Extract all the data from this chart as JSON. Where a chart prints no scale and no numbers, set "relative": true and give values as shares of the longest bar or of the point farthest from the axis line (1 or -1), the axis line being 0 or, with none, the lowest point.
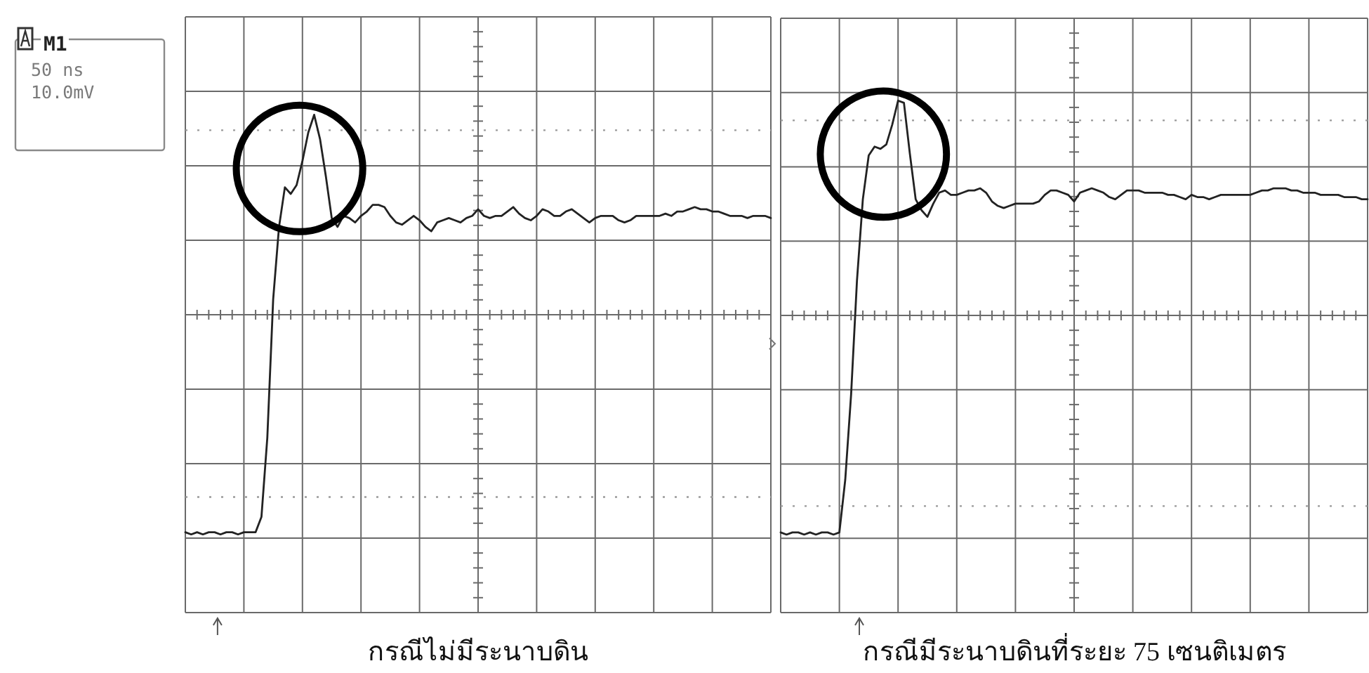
{
  "chart_data": [
    {
      "type": "line",
      "relative": true,
      "grid": true,
      "xlabel": "กรณีไม่มีระนาบดิน",
      "annotations": [
        "M1",
        "50 ns",
        "10.0mV"
      ],
      "ref_lines": [
        {
          "axis": "y",
          "value": 0.84,
          "line_style": "dotted",
          "color": "#9a9a9a"
        },
        {
          "axis": "y",
          "value": -0.83,
          "line_style": "dotted",
          "color": "#9a9a9a"
        }
      ],
      "categories": [
        null,
        null,
        null,
        null,
        null,
        null,
        null,
        null,
        null,
        null,
        null,
        null,
        null,
        null,
        null,
        null,
        null,
        null,
        null,
        null,
        null,
        null,
        null,
        null,
        null,
        null,
        null,
        null,
        null,
        null,
        null,
        null,
        null,
        null,
        null,
        null,
        null,
        null,
        null,
        null,
        null,
        null,
        null,
        null,
        null,
        null,
        null,
        null,
        null,
        null,
        null,
        null,
        null,
        null,
        null,
        null,
        null,
        null,
        null,
        null,
        null,
        null,
        null,
        null,
        null,
        null,
        null,
        null,
        null,
        null,
        null,
        null,
        null,
        null,
        null,
        null,
        null,
        null,
        null,
        null,
        null,
        null,
        null,
        null,
        null,
        null,
        null,
        null,
        null,
        null,
        null,
        null,
        null,
        null,
        null,
        null,
        null,
        null,
        null,
        null,
        null
      ],
      "series": [
        {
          "color": "#222222",
          "values": [
            -0.99,
            -1.0,
            -0.99,
            -1.0,
            -0.99,
            -0.99,
            -1.0,
            -0.99,
            -0.99,
            -1.0,
            -0.99,
            -0.99,
            -0.99,
            -0.92,
            -0.56,
            0.07,
            0.4,
            0.58,
            0.55,
            0.59,
            0.7,
            0.83,
            0.91,
            0.8,
            0.63,
            0.44,
            0.4,
            0.45,
            0.44,
            0.42,
            0.45,
            0.47,
            0.5,
            0.5,
            0.49,
            0.45,
            0.42,
            0.41,
            0.43,
            0.45,
            0.43,
            0.4,
            0.38,
            0.42,
            0.43,
            0.44,
            0.43,
            0.42,
            0.44,
            0.45,
            0.48,
            0.45,
            0.44,
            0.45,
            0.45,
            0.47,
            0.49,
            0.46,
            0.44,
            0.43,
            0.45,
            0.48,
            0.47,
            0.45,
            0.45,
            0.47,
            0.48,
            0.46,
            0.44,
            0.42,
            0.44,
            0.45,
            0.45,
            0.45,
            0.43,
            0.42,
            0.43,
            0.45,
            0.45,
            0.45,
            0.45,
            0.45,
            0.46,
            0.45,
            0.47,
            0.47,
            0.48,
            0.49,
            0.48,
            0.48,
            0.47,
            0.47,
            0.46,
            0.45,
            0.45,
            0.45,
            0.44,
            0.45,
            0.45,
            0.45,
            0.44
          ]
        }
      ]
    },
    {
      "type": "line",
      "relative": true,
      "grid": true,
      "xlabel": "กรณีมีระนาบดินที่ระยะ 75 เซนติเมตร",
      "ref_lines": [
        {
          "axis": "y",
          "value": 0.89,
          "line_style": "dotted",
          "color": "#9a9a9a"
        },
        {
          "axis": "y",
          "value": -0.87,
          "line_style": "dotted",
          "color": "#9a9a9a"
        }
      ],
      "categories": [
        null,
        null,
        null,
        null,
        null,
        null,
        null,
        null,
        null,
        null,
        null,
        null,
        null,
        null,
        null,
        null,
        null,
        null,
        null,
        null,
        null,
        null,
        null,
        null,
        null,
        null,
        null,
        null,
        null,
        null,
        null,
        null,
        null,
        null,
        null,
        null,
        null,
        null,
        null,
        null,
        null,
        null,
        null,
        null,
        null,
        null,
        null,
        null,
        null,
        null,
        null,
        null,
        null,
        null,
        null,
        null,
        null,
        null,
        null,
        null,
        null,
        null,
        null,
        null,
        null,
        null,
        null,
        null,
        null,
        null,
        null,
        null,
        null,
        null,
        null,
        null,
        null,
        null,
        null,
        null,
        null,
        null,
        null,
        null,
        null,
        null,
        null,
        null,
        null,
        null,
        null,
        null,
        null,
        null,
        null,
        null,
        null,
        null,
        null,
        null,
        null
      ],
      "series": [
        {
          "color": "#222222",
          "values": [
            -0.99,
            -1.0,
            -0.99,
            -0.99,
            -1.0,
            -0.99,
            -1.0,
            -0.99,
            -0.99,
            -1.0,
            -0.99,
            -0.75,
            -0.36,
            0.16,
            0.53,
            0.73,
            0.77,
            0.76,
            0.78,
            0.87,
            0.98,
            0.97,
            0.74,
            0.53,
            0.48,
            0.45,
            0.51,
            0.56,
            0.57,
            0.55,
            0.55,
            0.56,
            0.57,
            0.57,
            0.58,
            0.56,
            0.52,
            0.5,
            0.49,
            0.5,
            0.51,
            0.51,
            0.51,
            0.51,
            0.52,
            0.55,
            0.57,
            0.57,
            0.56,
            0.55,
            0.52,
            0.56,
            0.57,
            0.58,
            0.57,
            0.56,
            0.54,
            0.53,
            0.55,
            0.57,
            0.57,
            0.57,
            0.56,
            0.56,
            0.56,
            0.56,
            0.55,
            0.55,
            0.54,
            0.53,
            0.55,
            0.54,
            0.54,
            0.53,
            0.54,
            0.55,
            0.55,
            0.55,
            0.55,
            0.55,
            0.55,
            0.56,
            0.57,
            0.57,
            0.58,
            0.58,
            0.58,
            0.57,
            0.57,
            0.56,
            0.56,
            0.56,
            0.55,
            0.55,
            0.55,
            0.55,
            0.54,
            0.54,
            0.54,
            0.53,
            0.53
          ]
        }
      ]
    }
  ]
}
